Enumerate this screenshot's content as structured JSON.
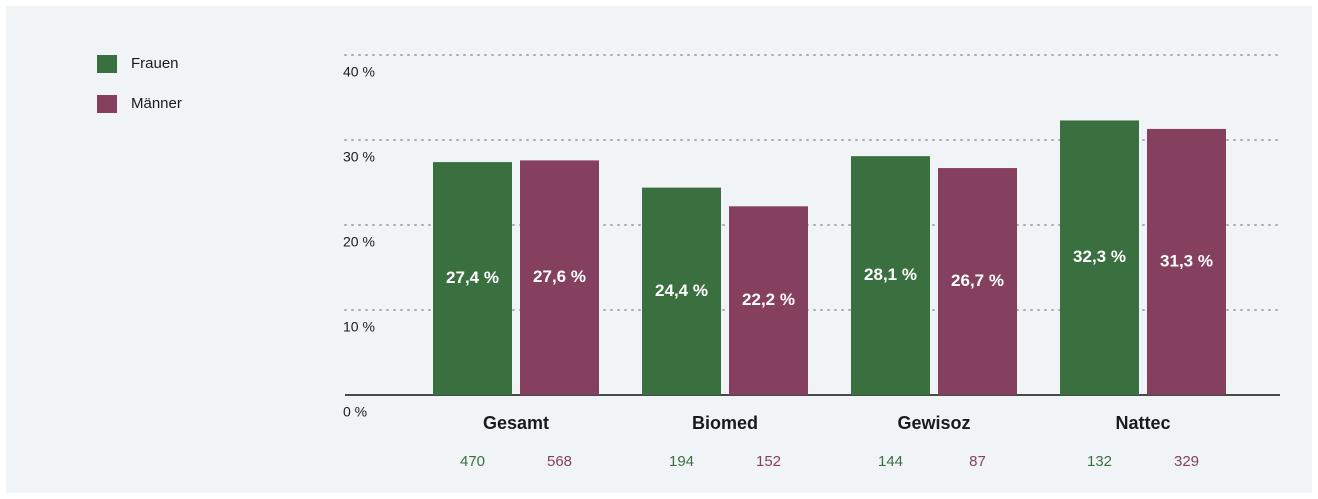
{
  "chart_data": {
    "type": "bar",
    "categories": [
      "Gesamt",
      "Biomed",
      "Gewisoz",
      "Nattec"
    ],
    "series": [
      {
        "name": "Frauen",
        "color": "#3a7040",
        "values": [
          27.4,
          24.4,
          28.1,
          32.3
        ],
        "value_labels": [
          "27,4 %",
          "24,4 %",
          "28,1 %",
          "32,3 %"
        ],
        "counts": [
          470,
          194,
          144,
          132
        ]
      },
      {
        "name": "Männer",
        "color": "#84405e",
        "values": [
          27.6,
          22.2,
          26.7,
          31.3
        ],
        "value_labels": [
          "27,6 %",
          "22,2 %",
          "26,7 %",
          "31,3 %"
        ],
        "counts": [
          568,
          152,
          87,
          329
        ]
      }
    ],
    "ylim": [
      0,
      40
    ],
    "yticks": [
      {
        "value": 0,
        "label": "0 %"
      },
      {
        "value": 10,
        "label": "10 %"
      },
      {
        "value": 20,
        "label": "20 %"
      },
      {
        "value": 30,
        "label": "30 %"
      },
      {
        "value": 40,
        "label": "40 %"
      }
    ],
    "grid": true,
    "legend": "top-left"
  }
}
